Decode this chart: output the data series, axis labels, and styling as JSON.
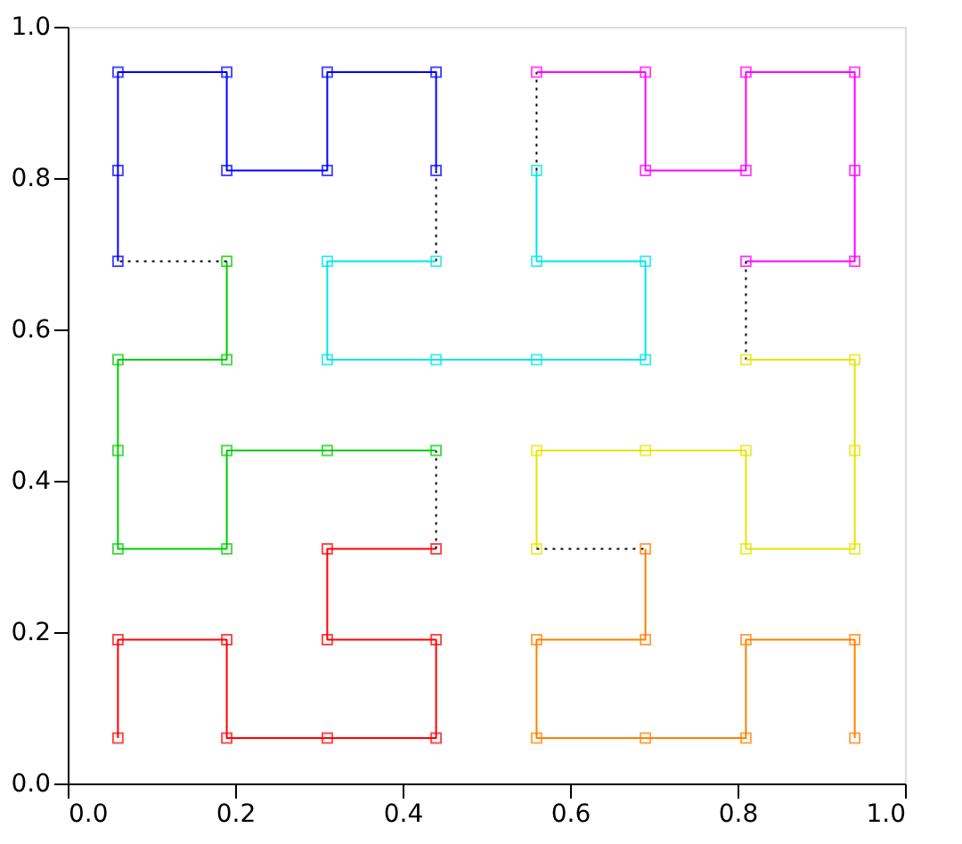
{
  "chart_data": {
    "type": "line",
    "marker": "square",
    "grid": false,
    "xlim": [
      0,
      1
    ],
    "ylim": [
      0,
      1
    ],
    "xticks": [
      {
        "value": 0,
        "label": "0.0"
      },
      0.2,
      0.4,
      0.6,
      0.8,
      {
        "value": 1,
        "label": "1.0"
      }
    ],
    "yticks": [
      {
        "value": 0,
        "label": "0.0"
      },
      0.2,
      0.4,
      0.6,
      0.8,
      {
        "value": 1,
        "label": "1.0"
      }
    ],
    "series": [
      {
        "color": "#ff0000",
        "line_style": "solid",
        "x": [
          0.06,
          0.06,
          0.19,
          0.19,
          0.31,
          0.44,
          0.44,
          0.31,
          0.31,
          0.44
        ],
        "values": [
          0.06,
          0.19,
          0.19,
          0.06,
          0.06,
          0.06,
          0.19,
          0.19,
          0.31,
          0.31
        ]
      },
      {
        "color": "#000000",
        "line_style": "dotted",
        "marker": "none",
        "x": [
          0.44,
          0.44
        ],
        "values": [
          0.31,
          0.44
        ]
      },
      {
        "color": "#00cc00",
        "line_style": "solid",
        "x": [
          0.44,
          0.31,
          0.19,
          0.19,
          0.06,
          0.06,
          0.06,
          0.19,
          0.19
        ],
        "values": [
          0.44,
          0.44,
          0.44,
          0.31,
          0.31,
          0.44,
          0.56,
          0.56,
          0.69
        ]
      },
      {
        "color": "#000000",
        "line_style": "dotted",
        "marker": "none",
        "x": [
          0.19,
          0.06
        ],
        "values": [
          0.69,
          0.69
        ]
      },
      {
        "color": "#0000ff",
        "line_style": "solid",
        "x": [
          0.06,
          0.06,
          0.06,
          0.19,
          0.19,
          0.31,
          0.31,
          0.44,
          0.44
        ],
        "values": [
          0.69,
          0.81,
          0.94,
          0.94,
          0.81,
          0.81,
          0.94,
          0.94,
          0.81
        ]
      },
      {
        "color": "#000000",
        "line_style": "dotted",
        "marker": "none",
        "x": [
          0.44,
          0.44
        ],
        "values": [
          0.81,
          0.69
        ]
      },
      {
        "color": "#00e5e5",
        "line_style": "solid",
        "x": [
          0.44,
          0.31,
          0.31,
          0.44,
          0.56,
          0.69,
          0.69,
          0.56,
          0.56
        ],
        "values": [
          0.69,
          0.69,
          0.56,
          0.56,
          0.56,
          0.56,
          0.69,
          0.69,
          0.81
        ]
      },
      {
        "color": "#000000",
        "line_style": "dotted",
        "marker": "none",
        "x": [
          0.56,
          0.56
        ],
        "values": [
          0.81,
          0.94
        ]
      },
      {
        "color": "#ff00ff",
        "line_style": "solid",
        "x": [
          0.56,
          0.69,
          0.69,
          0.81,
          0.81,
          0.94,
          0.94,
          0.94,
          0.81
        ],
        "values": [
          0.94,
          0.94,
          0.81,
          0.81,
          0.94,
          0.94,
          0.81,
          0.69,
          0.69
        ]
      },
      {
        "color": "#000000",
        "line_style": "dotted",
        "marker": "none",
        "x": [
          0.81,
          0.81
        ],
        "values": [
          0.69,
          0.56
        ]
      },
      {
        "color": "#e5e500",
        "line_style": "solid",
        "x": [
          0.81,
          0.94,
          0.94,
          0.94,
          0.81,
          0.81,
          0.69,
          0.56,
          0.56
        ],
        "values": [
          0.56,
          0.56,
          0.44,
          0.31,
          0.31,
          0.44,
          0.44,
          0.44,
          0.31
        ]
      },
      {
        "color": "#000000",
        "line_style": "dotted",
        "marker": "none",
        "x": [
          0.56,
          0.69
        ],
        "values": [
          0.31,
          0.31
        ]
      },
      {
        "color": "#ff8000",
        "line_style": "solid",
        "x": [
          0.69,
          0.69,
          0.56,
          0.56,
          0.69,
          0.81,
          0.81,
          0.94,
          0.94
        ],
        "values": [
          0.31,
          0.19,
          0.19,
          0.06,
          0.06,
          0.06,
          0.19,
          0.19,
          0.06
        ]
      }
    ]
  }
}
